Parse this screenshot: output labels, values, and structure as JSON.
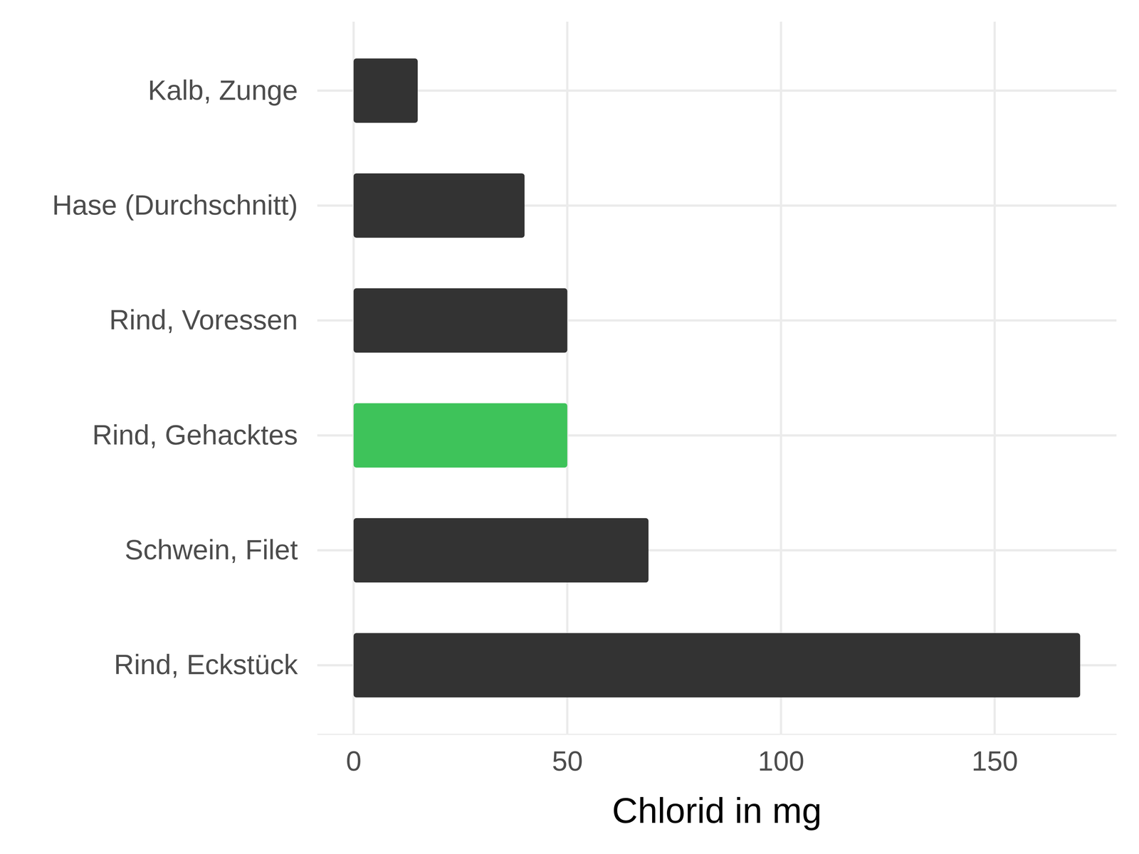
{
  "chart_data": {
    "type": "bar",
    "orientation": "horizontal",
    "x_label": "Chlorid in mg",
    "categories": [
      "Kalb, Zunge",
      "Hase (Durchschnitt)",
      "Rind, Voressen",
      "Rind, Gehacktes",
      "Schwein, Filet",
      "Rind, Eckstück"
    ],
    "values": [
      15,
      40,
      50,
      50,
      69,
      170
    ],
    "colors": [
      "#333333",
      "#333333",
      "#333333",
      "#3ec35a",
      "#333333",
      "#333333"
    ],
    "xlim": [
      -8.5,
      178.5
    ],
    "xticks": [
      0,
      50,
      100,
      150
    ],
    "grid": true,
    "data_labels": false
  }
}
